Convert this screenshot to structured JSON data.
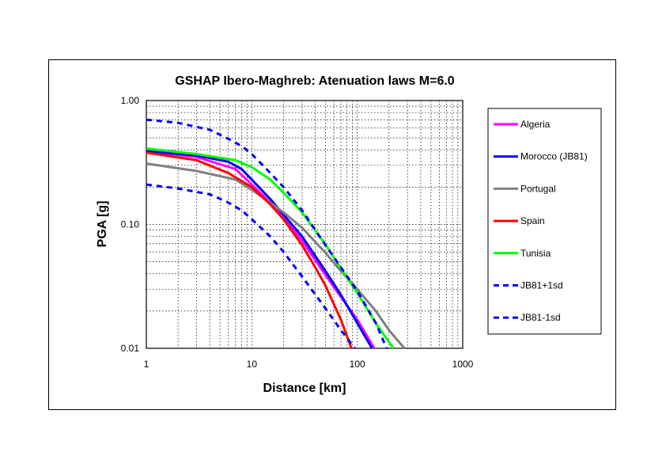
{
  "chart_data": {
    "type": "line",
    "title": "GSHAP Ibero-Maghreb: Atenuation laws M=6.0",
    "xlabel": "Distance [km]",
    "ylabel": "PGA [g]",
    "x_scale": "log",
    "y_scale": "log",
    "xlim": [
      1,
      1000
    ],
    "ylim": [
      0.01,
      1.0
    ],
    "x_ticks": [
      1,
      10,
      100,
      1000
    ],
    "x_tick_labels": [
      "1",
      "10",
      "100",
      "1000"
    ],
    "y_ticks": [
      0.01,
      0.1,
      1.0
    ],
    "y_tick_labels": [
      "0.01",
      "0.10",
      "1.00"
    ],
    "grid": true,
    "legend_position": "right",
    "series": [
      {
        "name": "Algeria",
        "color": "#ff00ff",
        "dash": false,
        "x": [
          1,
          3,
          7,
          10,
          15,
          20,
          30,
          50,
          70,
          100,
          145
        ],
        "y": [
          0.39,
          0.35,
          0.28,
          0.21,
          0.15,
          0.115,
          0.074,
          0.039,
          0.026,
          0.017,
          0.01
        ]
      },
      {
        "name": "Morocco (JB81)",
        "color": "#0000ff",
        "dash": false,
        "x": [
          1,
          3,
          6,
          8,
          10,
          15,
          20,
          30,
          50,
          70,
          100,
          138
        ],
        "y": [
          0.39,
          0.36,
          0.32,
          0.28,
          0.23,
          0.16,
          0.12,
          0.08,
          0.042,
          0.027,
          0.016,
          0.01
        ]
      },
      {
        "name": "Portugal",
        "color": "#808080",
        "dash": false,
        "x": [
          1,
          3,
          7,
          10,
          15,
          20,
          30,
          50,
          70,
          100,
          150,
          200,
          280
        ],
        "y": [
          0.31,
          0.27,
          0.23,
          0.19,
          0.15,
          0.125,
          0.094,
          0.059,
          0.042,
          0.03,
          0.02,
          0.014,
          0.01
        ]
      },
      {
        "name": "Spain",
        "color": "#ff0000",
        "dash": false,
        "x": [
          1,
          3,
          6,
          10,
          15,
          20,
          30,
          40,
          50,
          70,
          88
        ],
        "y": [
          0.38,
          0.33,
          0.26,
          0.2,
          0.145,
          0.11,
          0.068,
          0.045,
          0.032,
          0.017,
          0.01
        ]
      },
      {
        "name": "Tunisia",
        "color": "#00ff00",
        "dash": false,
        "x": [
          1,
          3,
          7,
          10,
          15,
          20,
          30,
          50,
          70,
          100,
          150,
          220
        ],
        "y": [
          0.41,
          0.37,
          0.33,
          0.29,
          0.23,
          0.18,
          0.125,
          0.069,
          0.044,
          0.028,
          0.016,
          0.01
        ]
      },
      {
        "name": "JB81+1sd",
        "color": "#0000ff",
        "dash": true,
        "x": [
          1,
          2,
          4,
          6,
          8,
          10,
          15,
          20,
          30,
          50,
          70,
          100,
          150,
          190
        ],
        "y": [
          0.7,
          0.66,
          0.58,
          0.49,
          0.43,
          0.37,
          0.26,
          0.2,
          0.13,
          0.068,
          0.045,
          0.029,
          0.016,
          0.01
        ]
      },
      {
        "name": "JB81-1sd",
        "color": "#0000ff",
        "dash": true,
        "x": [
          1,
          2,
          4,
          6,
          8,
          10,
          15,
          20,
          30,
          50,
          70,
          95
        ],
        "y": [
          0.21,
          0.195,
          0.175,
          0.15,
          0.13,
          0.11,
          0.08,
          0.06,
          0.038,
          0.021,
          0.014,
          0.01
        ]
      }
    ]
  }
}
